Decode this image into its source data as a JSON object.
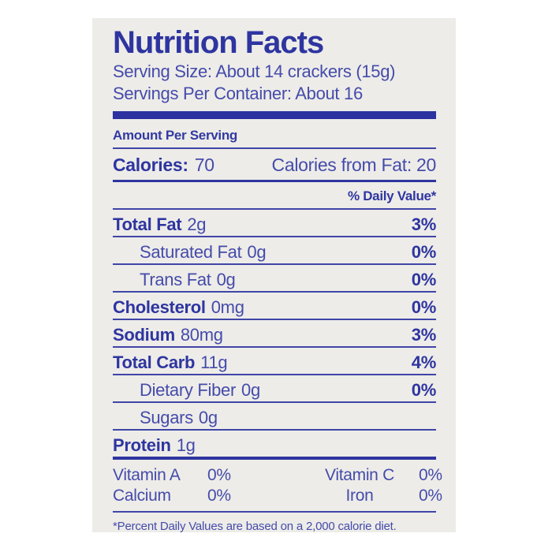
{
  "label": {
    "title": "Nutrition Facts",
    "serving_size": "Serving Size: About 14 crackers (15g)",
    "servings_per_container": "Servings Per Container: About 16",
    "amount_per_serving": "Amount Per Serving",
    "calories_label": "Calories:",
    "calories_value": "70",
    "calories_from_fat": "Calories from Fat: 20",
    "daily_value_header": "% Daily Value*",
    "nutrients": [
      {
        "name": "Total Fat",
        "amount": "2g",
        "dv": "3%"
      },
      {
        "name": "Saturated Fat",
        "amount": "0g",
        "dv": "0%"
      },
      {
        "name": "Trans Fat",
        "amount": "0g",
        "dv": "0%"
      },
      {
        "name": "Cholesterol",
        "amount": "0mg",
        "dv": "0%"
      },
      {
        "name": "Sodium",
        "amount": "80mg",
        "dv": "3%"
      },
      {
        "name": "Total Carb",
        "amount": "11g",
        "dv": "4%"
      },
      {
        "name": "Dietary Fiber",
        "amount": "0g",
        "dv": "0%"
      },
      {
        "name": "Sugars",
        "amount": "0g",
        "dv": ""
      },
      {
        "name": "Protein",
        "amount": "1g",
        "dv": ""
      }
    ],
    "vitamins": [
      {
        "left_label": "Vitamin A",
        "left_value": "0%",
        "right_label": "Vitamin C",
        "right_value": "0%"
      },
      {
        "left_label": "Calcium",
        "left_value": "0%",
        "right_label": "Iron",
        "right_value": "0%"
      }
    ],
    "footnote": "*Percent Daily Values are based on a 2,000 calorie diet.",
    "colors": {
      "text_blue_bold": "#2e35a0",
      "text_blue_regular": "#454bab",
      "rule_blue": "#3f45a8",
      "card_bg": "#edece8",
      "page_bg": "#ffffff"
    }
  }
}
